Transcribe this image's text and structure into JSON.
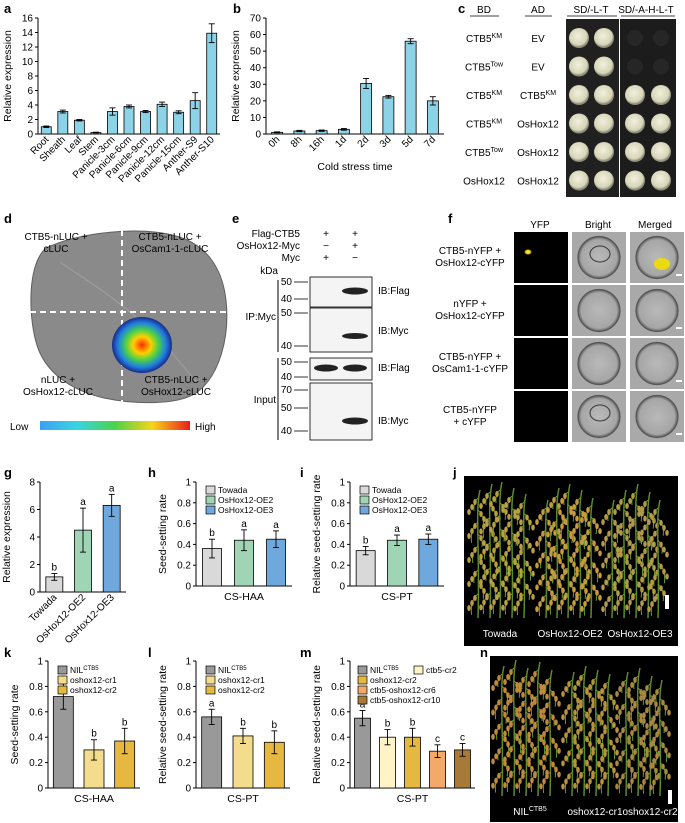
{
  "panel_labels": {
    "a": "a",
    "b": "b",
    "c": "c",
    "d": "d",
    "e": "e",
    "f": "f",
    "g": "g",
    "h": "h",
    "i": "i",
    "j": "j",
    "k": "k",
    "l": "l",
    "m": "m",
    "n": "n"
  },
  "chart_data": [
    {
      "id": "a",
      "type": "bar",
      "ylabel": "Relative expression",
      "ylim": [
        0,
        16
      ],
      "yticks": [
        0,
        2,
        4,
        6,
        8,
        10,
        12,
        14,
        16
      ],
      "categories": [
        "Root",
        "Sheath",
        "Leaf",
        "Stem",
        "Panicle-3cm",
        "Panicle-6cm",
        "Panicle-9cm",
        "Panicle-12cm",
        "Panicle-15cm",
        "Anther-S9",
        "Anther-S10"
      ],
      "values": [
        1.0,
        3.1,
        1.9,
        0.2,
        3.1,
        3.8,
        3.1,
        4.1,
        3.0,
        4.6,
        13.9
      ],
      "errors": [
        0.1,
        0.2,
        0.1,
        0.05,
        0.5,
        0.2,
        0.15,
        0.3,
        0.2,
        1.1,
        1.3
      ],
      "color": "#8dd3e8"
    },
    {
      "id": "b",
      "type": "bar",
      "ylabel": "Relative expression",
      "xlabel": "Cold stress time",
      "ylim": [
        0,
        70
      ],
      "yticks": [
        0,
        10,
        20,
        30,
        40,
        50,
        60,
        70
      ],
      "categories": [
        "0h",
        "8h",
        "16h",
        "1d",
        "2d",
        "3d",
        "5d",
        "7d"
      ],
      "values": [
        1.0,
        1.8,
        2.0,
        2.8,
        30.5,
        22.5,
        56.0,
        20.0
      ],
      "errors": [
        0.3,
        0.4,
        0.4,
        0.5,
        3.0,
        0.8,
        1.5,
        2.5
      ],
      "color": "#8dd3e8"
    },
    {
      "id": "g",
      "type": "bar",
      "ylabel": "Relative expression",
      "ylim": [
        0,
        8
      ],
      "yticks": [
        0,
        2,
        4,
        6,
        8
      ],
      "categories": [
        "Towada",
        "OsHox12-OE2",
        "OsHox12-OE3"
      ],
      "values": [
        1.1,
        4.5,
        6.3
      ],
      "errors": [
        0.25,
        1.6,
        0.8
      ],
      "letters": [
        "b",
        "a",
        "a"
      ],
      "colors": [
        "#d9d9d9",
        "#9fd4b4",
        "#6fa8dc"
      ]
    },
    {
      "id": "h",
      "type": "bar",
      "ylabel": "Seed-setting rate",
      "xlabel": "CS-HAA",
      "ylim": [
        0,
        1.0
      ],
      "yticks": [
        0,
        0.2,
        0.4,
        0.6,
        0.8,
        1.0
      ],
      "series": [
        {
          "name": "Towada",
          "value": 0.36,
          "error": 0.09
        },
        {
          "name": "OsHox12-OE2",
          "value": 0.44,
          "error": 0.1
        },
        {
          "name": "OsHox12-OE3",
          "value": 0.45,
          "error": 0.08
        }
      ],
      "letters": [
        "b",
        "a",
        "a"
      ],
      "colors": [
        "#d9d9d9",
        "#9fd4b4",
        "#6fa8dc"
      ]
    },
    {
      "id": "i",
      "type": "bar",
      "ylabel": "Relative seed-setting rate",
      "xlabel": "CS-PT",
      "ylim": [
        0,
        1.0
      ],
      "yticks": [
        0,
        0.2,
        0.4,
        0.6,
        0.8,
        1.0
      ],
      "series": [
        {
          "name": "Towada",
          "value": 0.34,
          "error": 0.04
        },
        {
          "name": "OsHox12-OE2",
          "value": 0.44,
          "error": 0.05
        },
        {
          "name": "OsHox12-OE3",
          "value": 0.45,
          "error": 0.05
        }
      ],
      "letters": [
        "b",
        "a",
        "a"
      ],
      "colors": [
        "#d9d9d9",
        "#9fd4b4",
        "#6fa8dc"
      ]
    },
    {
      "id": "k",
      "type": "bar",
      "ylabel": "Seed-setting rate",
      "xlabel": "CS-HAA",
      "ylim": [
        0,
        1.0
      ],
      "yticks": [
        0,
        0.2,
        0.4,
        0.6,
        0.8,
        1.0
      ],
      "series": [
        {
          "name": "NIL^CTB5",
          "value": 0.72,
          "error": 0.1
        },
        {
          "name": "oshox12-cr1",
          "value": 0.3,
          "error": 0.08
        },
        {
          "name": "oshox12-cr2",
          "value": 0.37,
          "error": 0.1
        }
      ],
      "letters": [
        "a",
        "b",
        "b"
      ],
      "colors": [
        "#999999",
        "#f3dc8c",
        "#e6b840"
      ]
    },
    {
      "id": "l",
      "type": "bar",
      "ylabel": "Relative seed-setting rate",
      "xlabel": "CS-PT",
      "ylim": [
        0,
        1.0
      ],
      "yticks": [
        0,
        0.2,
        0.4,
        0.6,
        0.8,
        1.0
      ],
      "series": [
        {
          "name": "NIL^CTB5",
          "value": 0.56,
          "error": 0.06
        },
        {
          "name": "oshox12-cr1",
          "value": 0.41,
          "error": 0.06
        },
        {
          "name": "oshox12-cr2",
          "value": 0.36,
          "error": 0.09
        }
      ],
      "letters": [
        "a",
        "b",
        "b"
      ],
      "colors": [
        "#999999",
        "#f3dc8c",
        "#e6b840"
      ]
    },
    {
      "id": "m",
      "type": "bar",
      "ylabel": "Relative seed-setting rate",
      "xlabel": "CS-PT",
      "ylim": [
        0,
        1.0
      ],
      "yticks": [
        0,
        0.2,
        0.4,
        0.6,
        0.8,
        1.0
      ],
      "series": [
        {
          "name": "NIL^CTB5",
          "value": 0.55,
          "error": 0.06
        },
        {
          "name": "ctb5-cr2",
          "value": 0.4,
          "error": 0.06
        },
        {
          "name": "oshox12-cr2",
          "value": 0.4,
          "error": 0.07
        },
        {
          "name": "ctb5-oshox12-cr6",
          "value": 0.29,
          "error": 0.05
        },
        {
          "name": "ctb5-oshox12-cr10",
          "value": 0.3,
          "error": 0.05
        }
      ],
      "letters": [
        "a",
        "b",
        "b",
        "c",
        "c"
      ],
      "colors": [
        "#999999",
        "#fff3c7",
        "#e6b840",
        "#f4a96a",
        "#a87a3a"
      ]
    }
  ],
  "panel_c": {
    "headers": {
      "bd": "BD",
      "ad": "AD",
      "sd1": "SD/-L-T",
      "sd2": "SD/-A-H-L-T"
    },
    "rows": [
      {
        "bd": "CTB5",
        "bd_sup": "KM",
        "ad": "EV",
        "ad_sup": "",
        "growth": [
          1,
          0
        ]
      },
      {
        "bd": "CTB5",
        "bd_sup": "Tow",
        "ad": "EV",
        "ad_sup": "",
        "growth": [
          1,
          0
        ]
      },
      {
        "bd": "CTB5",
        "bd_sup": "KM",
        "ad": "CTB5",
        "ad_sup": "KM",
        "growth": [
          1,
          1
        ]
      },
      {
        "bd": "CTB5",
        "bd_sup": "KM",
        "ad": "OsHox12",
        "ad_sup": "",
        "growth": [
          1,
          1
        ]
      },
      {
        "bd": "CTB5",
        "bd_sup": "Tow",
        "ad": "OsHox12",
        "ad_sup": "",
        "growth": [
          1,
          1
        ]
      },
      {
        "bd": "OsHox12",
        "bd_sup": "",
        "ad": "OsHox12",
        "ad_sup": "",
        "growth": [
          1,
          1
        ]
      }
    ]
  },
  "panel_d": {
    "q1": [
      "CTB5-nLUC +",
      "cLUC"
    ],
    "q2": [
      "CTB5-nLUC +",
      "OsCam1-1-cLUC"
    ],
    "q3": [
      "nLUC +",
      "OsHox12-cLUC"
    ],
    "q4": [
      "CTB5-nLUC +",
      "OsHox12-cLUC"
    ],
    "low": "Low",
    "high": "High"
  },
  "panel_e": {
    "row_labels": [
      "Flag-CTB5",
      "OsHox12-Myc",
      "Myc"
    ],
    "lane1": [
      "+",
      "−",
      "+"
    ],
    "lane2": [
      "+",
      "+",
      "−"
    ],
    "kda": "kDa",
    "markers": {
      "m1": [
        "50",
        "40"
      ],
      "m2": [
        "50",
        "40"
      ],
      "m3": [
        "50",
        "40"
      ],
      "m4": [
        "70",
        "50",
        "40"
      ]
    },
    "ib": [
      "IB:Flag",
      "IB:Myc",
      "IB:Flag",
      "IB:Myc"
    ],
    "ip": "IP:Myc",
    "input": "Input"
  },
  "panel_f": {
    "headers": [
      "YFP",
      "Bright",
      "Merged"
    ],
    "rows": [
      [
        "CTB5-nYFP +",
        "OsHox12-cYFP"
      ],
      [
        "nYFP +",
        "OsHox12-cYFP"
      ],
      [
        "CTB5-nYFP +",
        "OsCam1-1-cYFP"
      ],
      [
        "CTB5-nYFP",
        "+ cYFP"
      ]
    ]
  },
  "panel_j": {
    "labels": [
      "Towada",
      "OsHox12-OE2",
      "OsHox12-OE3"
    ]
  },
  "panel_n": {
    "labels": [
      "NIL",
      "oshox12-cr1",
      "oshox12-cr2"
    ],
    "sup": "CTB5"
  }
}
